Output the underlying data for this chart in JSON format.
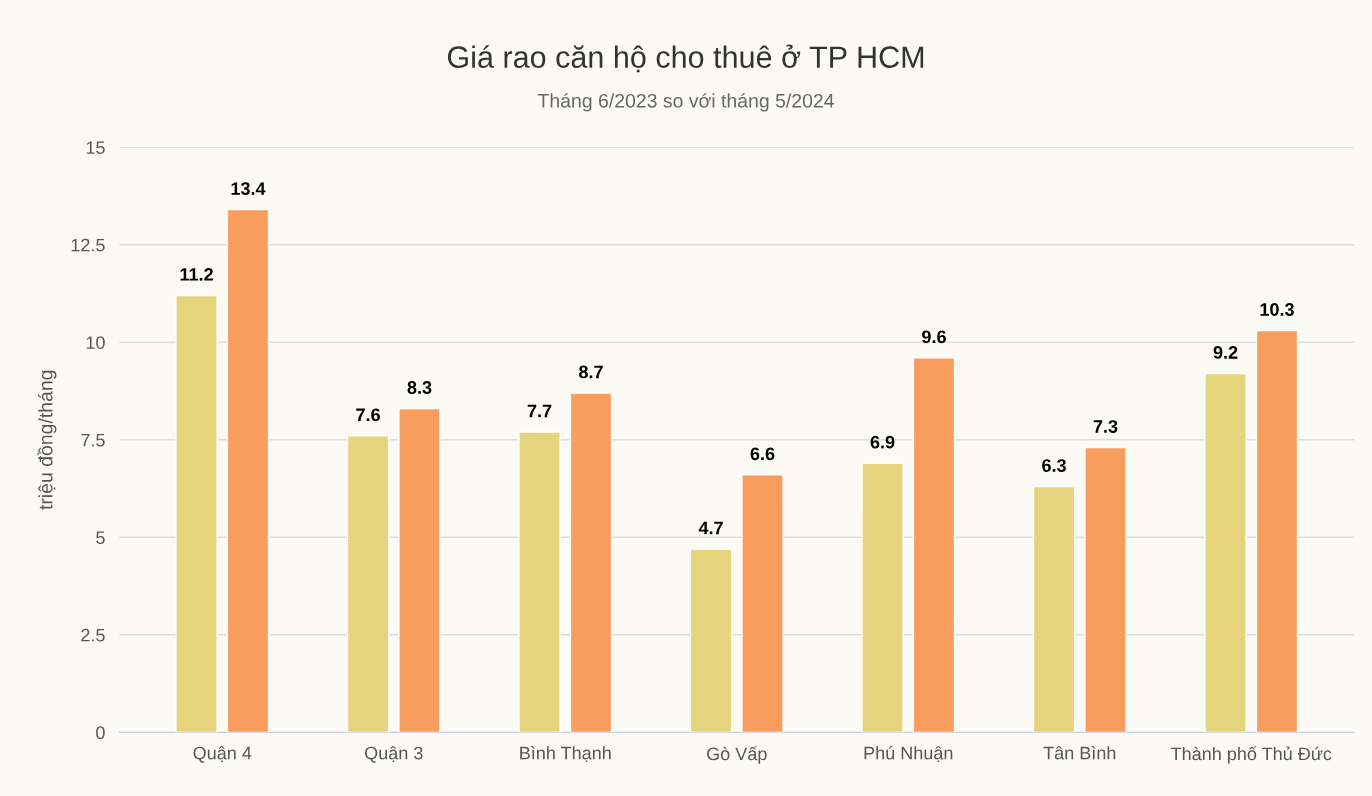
{
  "chart_data": {
    "type": "bar",
    "title": "Giá rao căn hộ cho thuê ở TP HCM",
    "subtitle": "Tháng 6/2023 so với tháng 5/2024",
    "ylabel": "triệu đồng/tháng",
    "categories": [
      "Quận 4",
      "Quận 3",
      "Bình Thạnh",
      "Gò Vấp",
      "Phú Nhuận",
      "Tân Bình",
      "Thành phố Thủ Đức"
    ],
    "series": [
      {
        "color": "#e6d47c",
        "values": [
          11.2,
          7.6,
          7.7,
          4.7,
          6.9,
          6.3,
          9.2
        ]
      },
      {
        "color": "#f99d5f",
        "values": [
          13.4,
          8.3,
          8.7,
          6.6,
          9.6,
          7.3,
          10.3
        ]
      }
    ],
    "ylim": [
      0,
      15
    ],
    "yticks": [
      0,
      {
        "value": 2.5,
        "label": "2.5"
      },
      5,
      {
        "value": 7.5,
        "label": "7.5"
      },
      10,
      {
        "value": 12.5,
        "label": "12.5"
      },
      15
    ],
    "grid": "y",
    "data_labels": true
  }
}
